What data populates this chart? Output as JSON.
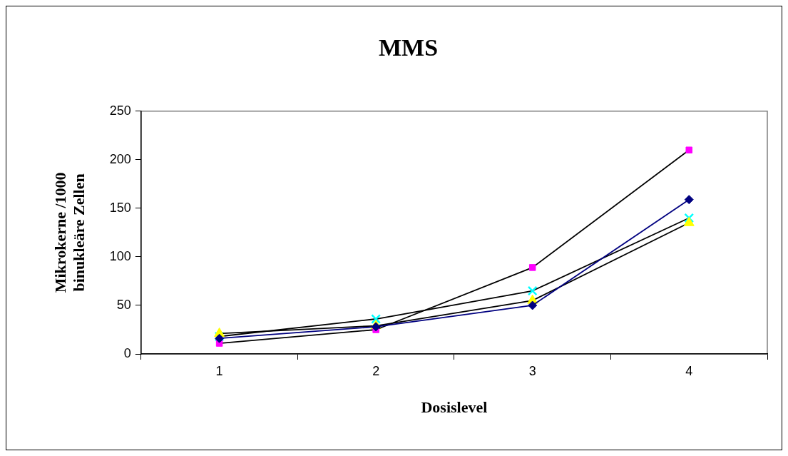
{
  "chart_data": {
    "type": "line",
    "title": "MMS",
    "xlabel": "Dosislevel",
    "ylabel": "Mikrokerne /1000\nbinukleäre Zellen",
    "categories": [
      "1",
      "2",
      "3",
      "4"
    ],
    "series": [
      {
        "color": "#000080",
        "colors": [
          "#000080",
          "#000080",
          "#000080",
          "#000080"
        ],
        "marker": "diamond",
        "values": [
          16,
          28,
          50,
          159
        ]
      },
      {
        "color": "#000000",
        "colors": [
          "#ff00ff",
          "#ff00ff",
          "#ff00ff",
          "#ff00ff"
        ],
        "marker": "square",
        "values": [
          11,
          25,
          89,
          210
        ]
      },
      {
        "color": "#000000",
        "colors": [
          "#ffff00",
          "#ffff00",
          "#ffff00",
          "#ffff00"
        ],
        "marker": "triangle",
        "values": [
          21,
          29,
          55,
          135
        ]
      },
      {
        "color": "#000000",
        "colors": [
          "#00ffff",
          "#00ffff",
          "#00ffff",
          "#00ffff"
        ],
        "marker": "cross",
        "values": [
          18,
          36,
          65,
          140
        ]
      }
    ],
    "ylim": [
      0,
      250
    ],
    "yticks": [
      0,
      50,
      100,
      150,
      200,
      250
    ],
    "grid": false,
    "legend": false
  }
}
